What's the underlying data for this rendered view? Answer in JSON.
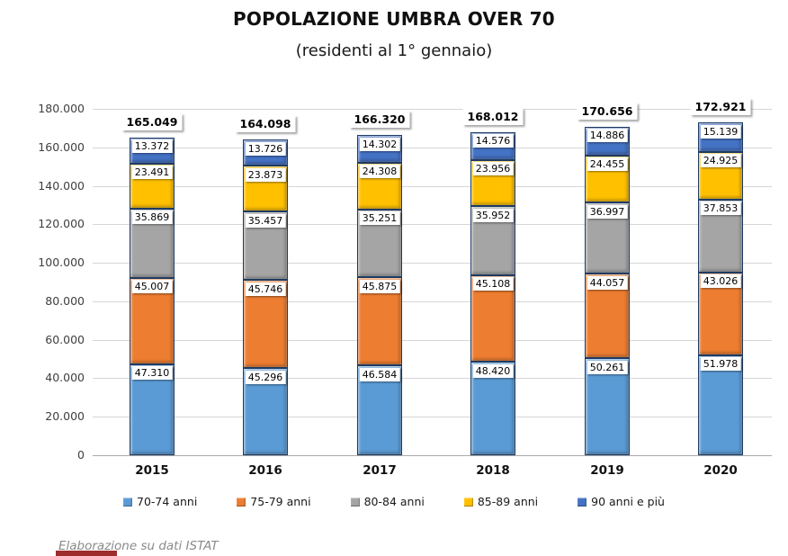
{
  "title": "POPOLAZIONE UMBRA OVER 70",
  "subtitle": "(residenti al 1° gennaio)",
  "footer": "Elaborazione su dati ISTAT",
  "chart_data": {
    "type": "bar",
    "stacked": true,
    "grid": true,
    "legend_position": "bottom",
    "categories": [
      "2015",
      "2016",
      "2017",
      "2018",
      "2019",
      "2020"
    ],
    "series": [
      {
        "name": "70-74 anni",
        "color": "#5B9BD5",
        "values": [
          47310,
          45296,
          46584,
          48420,
          50261,
          51978
        ]
      },
      {
        "name": "75-79 anni",
        "color": "#ED7D31",
        "values": [
          45007,
          45746,
          45875,
          45108,
          44057,
          43026
        ]
      },
      {
        "name": "80-84 anni",
        "color": "#A5A5A5",
        "values": [
          35869,
          35457,
          35251,
          35952,
          36997,
          37853
        ]
      },
      {
        "name": "85-89 anni",
        "color": "#FFC000",
        "values": [
          23491,
          23873,
          24308,
          23956,
          24455,
          24925
        ]
      },
      {
        "name": "90 anni e più",
        "color": "#4472C4",
        "values": [
          13372,
          13726,
          14302,
          14576,
          14886,
          15139
        ]
      }
    ],
    "totals": [
      165049,
      164098,
      166320,
      168012,
      170656,
      172921
    ],
    "ylim": [
      0,
      180000
    ],
    "ytick_step": 20000,
    "ytick_labels": [
      "0",
      "20.000",
      "40.000",
      "60.000",
      "80.000",
      "100.000",
      "120.000",
      "140.000",
      "160.000",
      "180.000"
    ],
    "number_format": "it-thousands-dot"
  }
}
